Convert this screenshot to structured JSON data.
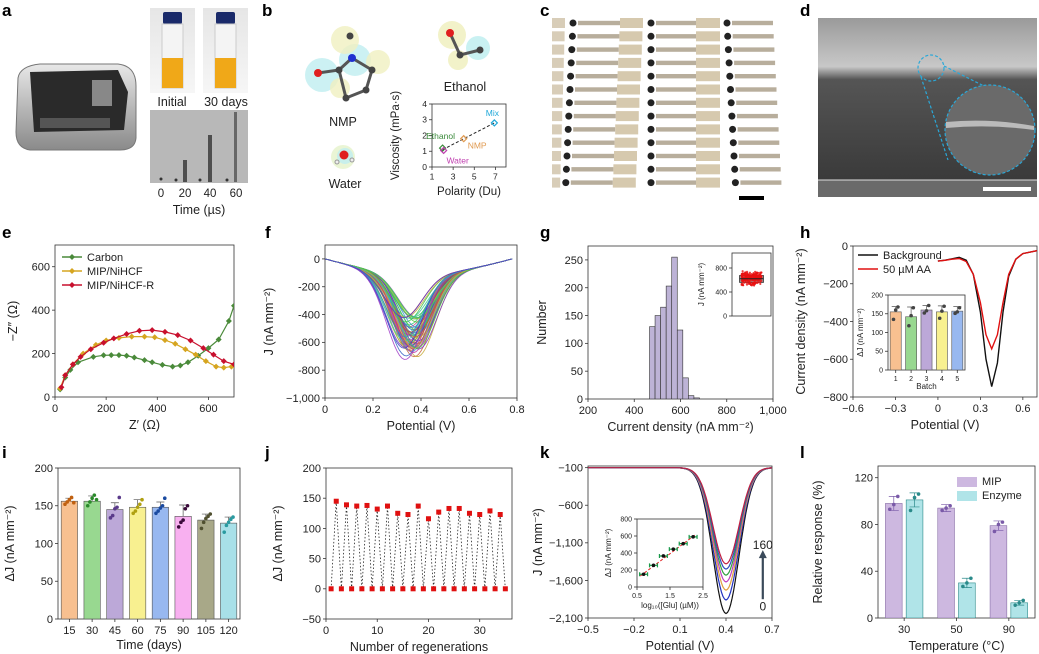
{
  "panel_labels": [
    "a",
    "b",
    "c",
    "d",
    "e",
    "f",
    "g",
    "h",
    "i",
    "j",
    "k",
    "l"
  ],
  "panel_a": {
    "vial_labels": [
      "Initial",
      "30 days"
    ],
    "time_ticks": [
      "0",
      "20",
      "40",
      "60"
    ],
    "time_axis_label": "Time (µs)"
  },
  "panel_b": {
    "molecules": [
      "NMP",
      "Ethanol",
      "Water"
    ]
  },
  "chart_data": [
    {
      "id": "b-inset",
      "type": "scatter",
      "xlabel": "Polarity (Du)",
      "ylabel": "Viscosity (mPa·s)",
      "xlim": [
        1,
        8
      ],
      "ylim": [
        0,
        4
      ],
      "xticks": [
        1,
        3,
        5,
        7
      ],
      "xtick_labels": [
        "1",
        "3",
        "5",
        "7"
      ],
      "yticks": [
        0,
        1,
        2,
        3,
        4
      ],
      "ytick_labels": [
        "0",
        "1",
        "2",
        "3",
        "4"
      ],
      "points": [
        {
          "label": "Ethanol",
          "x": 2.0,
          "y": 1.2,
          "color": "#3a8a3a"
        },
        {
          "label": "Water",
          "x": 2.1,
          "y": 1.05,
          "color": "#c040b0"
        },
        {
          "label": "NMP",
          "x": 4.0,
          "y": 1.8,
          "color": "#e09a50"
        },
        {
          "label": "Mix",
          "x": 6.9,
          "y": 2.8,
          "color": "#20a8d8"
        }
      ],
      "fit_line": [
        [
          2.0,
          1.1
        ],
        [
          6.9,
          2.8
        ]
      ]
    },
    {
      "id": "e",
      "type": "line",
      "xlabel": "Z′ (Ω)",
      "ylabel": "−Z″ (Ω)",
      "xlim": [
        0,
        700
      ],
      "ylim": [
        0,
        700
      ],
      "xticks": [
        0,
        200,
        400,
        600
      ],
      "xtick_labels": [
        "0",
        "200",
        "400",
        "600"
      ],
      "yticks": [
        0,
        200,
        400,
        600
      ],
      "ytick_labels": [
        "0",
        "200",
        "400",
        "600"
      ],
      "legend_position": "top-left",
      "series": [
        {
          "name": "Carbon",
          "color": "#4a8a3a",
          "points": [
            [
              20,
              35
            ],
            [
              40,
              90
            ],
            [
              60,
              125
            ],
            [
              90,
              160
            ],
            [
              150,
              185
            ],
            [
              190,
              192
            ],
            [
              220,
              193
            ],
            [
              250,
              193
            ],
            [
              280,
              190
            ],
            [
              310,
              182
            ],
            [
              350,
              170
            ],
            [
              380,
              160
            ],
            [
              420,
              148
            ],
            [
              460,
              140
            ],
            [
              490,
              145
            ],
            [
              520,
              160
            ],
            [
              560,
              190
            ],
            [
              600,
              225
            ],
            [
              640,
              265
            ],
            [
              680,
              350
            ],
            [
              700,
              420
            ]
          ]
        },
        {
          "name": "MIP/NiHCF",
          "color": "#d6a520",
          "points": [
            [
              20,
              40
            ],
            [
              40,
              100
            ],
            [
              70,
              150
            ],
            [
              110,
              200
            ],
            [
              160,
              240
            ],
            [
              200,
              260
            ],
            [
              250,
              272
            ],
            [
              300,
              278
            ],
            [
              350,
              278
            ],
            [
              390,
              275
            ],
            [
              430,
              262
            ],
            [
              470,
              245
            ],
            [
              510,
              220
            ],
            [
              550,
              195
            ],
            [
              590,
              165
            ],
            [
              630,
              140
            ],
            [
              660,
              135
            ],
            [
              690,
              140
            ],
            [
              700,
              145
            ]
          ]
        },
        {
          "name": "MIP/NiHCF-R",
          "color": "#c8102e",
          "points": [
            [
              25,
              45
            ],
            [
              40,
              100
            ],
            [
              70,
              150
            ],
            [
              100,
              185
            ],
            [
              140,
              220
            ],
            [
              190,
              250
            ],
            [
              230,
              270
            ],
            [
              280,
              290
            ],
            [
              330,
              305
            ],
            [
              380,
              308
            ],
            [
              430,
              300
            ],
            [
              480,
              285
            ],
            [
              530,
              260
            ],
            [
              580,
              225
            ],
            [
              620,
              195
            ],
            [
              660,
              165
            ],
            [
              700,
              150
            ]
          ]
        }
      ]
    },
    {
      "id": "f",
      "type": "line",
      "xlabel": "Potential (V)",
      "ylabel": "J (nA mm⁻²)",
      "xlim": [
        0,
        0.8
      ],
      "ylim": [
        -1000,
        100
      ],
      "xticks": [
        0,
        0.2,
        0.4,
        0.6,
        0.8
      ],
      "xtick_labels": [
        "0",
        "0.2",
        "0.4",
        "0.6",
        "0.8"
      ],
      "yticks": [
        -1000,
        -800,
        -600,
        -400,
        -200,
        0
      ],
      "ytick_labels": [
        "−1,000",
        "-800",
        "-600",
        "-400",
        "-200",
        "0"
      ],
      "curve_count": 60,
      "peak_minimum_range": [
        -820,
        -490
      ],
      "peak_potential_range": [
        0.33,
        0.39
      ]
    },
    {
      "id": "g",
      "type": "bar",
      "xlabel": "Current density (nA mm⁻²)",
      "ylabel": "Number",
      "xlim": [
        200,
        1000
      ],
      "ylim": [
        0,
        275
      ],
      "xticks": [
        200,
        400,
        600,
        800,
        1000
      ],
      "xtick_labels": [
        "200",
        "400",
        "600",
        "800",
        "1,000"
      ],
      "yticks": [
        0,
        50,
        100,
        150,
        200,
        250
      ],
      "ytick_labels": [
        "0",
        "50",
        "100",
        "150",
        "200",
        "250"
      ],
      "bin_start": 466,
      "bin_width": 24,
      "values": [
        130,
        150,
        165,
        203,
        255,
        124,
        38,
        6,
        2
      ],
      "color": "#bdb3d6"
    },
    {
      "id": "g-inset",
      "type": "scatter",
      "ylabel": "J (nA mm⁻²)",
      "xlim": [
        0,
        1
      ],
      "ylim": [
        0,
        1050
      ],
      "yticks": [
        0,
        400,
        800
      ],
      "ytick_labels": [
        "0",
        "400",
        "800"
      ],
      "box": {
        "q1": 560,
        "median": 620,
        "q3": 675
      },
      "points_range": [
        490,
        760
      ],
      "point_count": 220,
      "color": "#e81010"
    },
    {
      "id": "h",
      "type": "line",
      "xlabel": "Potential (V)",
      "ylabel": "Current density (nA mm⁻²)",
      "xlim": [
        -0.6,
        0.7
      ],
      "ylim": [
        -800,
        0
      ],
      "xticks": [
        -0.6,
        -0.3,
        0,
        0.3,
        0.6
      ],
      "xtick_labels": [
        "−0.6",
        "−0.3",
        "0",
        "0.3",
        "0.6"
      ],
      "yticks": [
        -800,
        -600,
        -400,
        -200,
        0
      ],
      "ytick_labels": [
        "−800",
        "−600",
        "−400",
        "−200",
        "0"
      ],
      "legend_position": "top-left",
      "series": [
        {
          "name": "Background",
          "color": "#111111",
          "points": [
            [
              0,
              -80
            ],
            [
              0.05,
              -75
            ],
            [
              0.1,
              -68
            ],
            [
              0.15,
              -60
            ],
            [
              0.2,
              -75
            ],
            [
              0.25,
              -150
            ],
            [
              0.3,
              -350
            ],
            [
              0.34,
              -600
            ],
            [
              0.38,
              -745
            ],
            [
              0.42,
              -620
            ],
            [
              0.46,
              -350
            ],
            [
              0.5,
              -160
            ],
            [
              0.55,
              -70
            ],
            [
              0.6,
              -40
            ],
            [
              0.7,
              -25
            ]
          ]
        },
        {
          "name": "50 µM AA",
          "color": "#e01010",
          "points": [
            [
              0,
              -80
            ],
            [
              0.05,
              -76
            ],
            [
              0.1,
              -70
            ],
            [
              0.15,
              -66
            ],
            [
              0.2,
              -82
            ],
            [
              0.25,
              -150
            ],
            [
              0.3,
              -300
            ],
            [
              0.34,
              -470
            ],
            [
              0.38,
              -545
            ],
            [
              0.42,
              -470
            ],
            [
              0.46,
              -300
            ],
            [
              0.5,
              -150
            ],
            [
              0.55,
              -70
            ],
            [
              0.6,
              -40
            ],
            [
              0.7,
              -25
            ]
          ]
        }
      ]
    },
    {
      "id": "h-inset",
      "type": "bar",
      "xlabel": "Batch",
      "ylabel": "ΔJ (nA mm⁻²)",
      "ylim": [
        0,
        200
      ],
      "yticks": [
        0,
        50,
        100,
        150,
        200
      ],
      "ytick_labels": [
        "0",
        "50",
        "100",
        "150",
        "200"
      ],
      "categories": [
        "1",
        "2",
        "3",
        "4",
        "5"
      ],
      "values": [
        155,
        142,
        160,
        155,
        157
      ],
      "errors": [
        14,
        26,
        12,
        16,
        12
      ],
      "points": [
        [
          135,
          160,
          168
        ],
        [
          118,
          145,
          166
        ],
        [
          152,
          158,
          172
        ],
        [
          138,
          157,
          170
        ],
        [
          151,
          155,
          166
        ]
      ],
      "colors": [
        "#f8c090",
        "#98d890",
        "#bca8d8",
        "#f8f090",
        "#98b8f0"
      ]
    },
    {
      "id": "i",
      "type": "bar",
      "xlabel": "Time (days)",
      "ylabel": "ΔJ (nA mm⁻²)",
      "ylim": [
        0,
        200
      ],
      "yticks": [
        0,
        50,
        100,
        150,
        200
      ],
      "ytick_labels": [
        "0",
        "50",
        "100",
        "150",
        "200"
      ],
      "categories": [
        "15",
        "30",
        "45",
        "60",
        "75",
        "90",
        "105",
        "120"
      ],
      "values": [
        156,
        156,
        145,
        148,
        148,
        136,
        131,
        127
      ],
      "errors": [
        4,
        7,
        9,
        10,
        7,
        15,
        8,
        8
      ],
      "points": [
        [
          152,
          155,
          158,
          161,
          154
        ],
        [
          150,
          155,
          160,
          164,
          158
        ],
        [
          134,
          137,
          146,
          148,
          161
        ],
        [
          140,
          143,
          148,
          152,
          158
        ],
        [
          140,
          143,
          147,
          150,
          160
        ],
        [
          122,
          128,
          131,
          146,
          150
        ],
        [
          120,
          128,
          133,
          136,
          139
        ],
        [
          115,
          124,
          128,
          132,
          135
        ]
      ],
      "colors": [
        "#f8c090",
        "#98d890",
        "#bca8d8",
        "#f8f090",
        "#98b8f0",
        "#f8b0f0",
        "#a8a888",
        "#a8e0e8"
      ],
      "point_colors": [
        "#c06010",
        "#2a8a2a",
        "#5a3a8a",
        "#b0a010",
        "#1a4aa0",
        "#3a0a3a",
        "#505030",
        "#2a9aa0"
      ]
    },
    {
      "id": "j",
      "type": "scatter",
      "xlabel": "Number of regenerations",
      "ylabel": "ΔJ (nA mm⁻²)",
      "xlim": [
        0,
        36.3
      ],
      "ylim": [
        -50,
        200
      ],
      "xticks": [
        0,
        10,
        20,
        30
      ],
      "xtick_labels": [
        "0",
        "10",
        "20",
        "30"
      ],
      "yticks": [
        -50,
        0,
        50,
        100,
        150,
        200
      ],
      "ytick_labels": [
        "−50",
        "0",
        "50",
        "100",
        "150",
        "200"
      ],
      "x": [
        1,
        2,
        3,
        4,
        5,
        6,
        7,
        8,
        9,
        10,
        11,
        12,
        13,
        14,
        15,
        16,
        17,
        18,
        19,
        20,
        21,
        22,
        23,
        24,
        25,
        26,
        27,
        28,
        29,
        30,
        31,
        32,
        33,
        34,
        35
      ],
      "y": [
        0,
        145,
        0,
        139,
        0,
        137,
        0,
        138,
        0,
        132,
        0,
        137,
        0,
        125,
        0,
        123,
        0,
        137,
        0,
        116,
        0,
        127,
        0,
        133,
        0,
        133,
        0,
        125,
        0,
        123,
        0,
        129,
        0,
        123,
        0
      ],
      "color": "#e01010"
    },
    {
      "id": "k",
      "type": "line",
      "xlabel": "Potential (V)",
      "ylabel": "J (nA mm⁻²)",
      "xlim": [
        -0.5,
        0.7
      ],
      "ylim": [
        -2100,
        -78
      ],
      "xticks": [
        -0.5,
        -0.2,
        0.1,
        0.4,
        0.7
      ],
      "xtick_labels": [
        "−0.5",
        "−0.2",
        "0.1",
        "0.4",
        "0.7"
      ],
      "yticks": [
        -2100,
        -1600,
        -1100,
        -600,
        -100
      ],
      "ytick_labels": [
        "−2,100",
        "−1,600",
        "−1,100",
        "−600",
        "−100"
      ],
      "peak_potential": 0.4,
      "peak_minima": [
        -2040,
        -1860,
        -1730,
        -1620,
        -1530,
        -1450,
        -1380
      ],
      "curve_colors": [
        "#111111",
        "#2030c0",
        "#e0a040",
        "#c040c0",
        "#30a040",
        "#3050c0",
        "#c02040"
      ],
      "annotations": {
        "top": "160",
        "bottom": "0"
      }
    },
    {
      "id": "k-inset",
      "type": "scatter",
      "xlabel": "log₁₀([Glu] (µM))",
      "ylabel": "ΔJ (nA mm⁻²)",
      "xlim": [
        0.5,
        2.5
      ],
      "ylim": [
        0,
        800
      ],
      "xticks": [
        0.5,
        1.5,
        2.5
      ],
      "xtick_labels": [
        "0.5",
        "1.5",
        "2.5"
      ],
      "yticks": [
        0,
        200,
        400,
        600,
        800
      ],
      "ytick_labels": [
        "0",
        "200",
        "400",
        "600",
        "800"
      ],
      "x": [
        0.7,
        1.0,
        1.3,
        1.6,
        1.9,
        2.2
      ],
      "y": [
        150,
        255,
        365,
        445,
        510,
        590
      ],
      "xerr": 0.12,
      "fit_line": [
        [
          0.6,
          130
        ],
        [
          2.25,
          610
        ]
      ]
    },
    {
      "id": "l",
      "type": "bar",
      "xlabel": "Temperature (°C)",
      "ylabel": "Relative response (%)",
      "ylim": [
        0,
        130
      ],
      "yticks": [
        0,
        40,
        80,
        120
      ],
      "ytick_labels": [
        "0",
        "40",
        "80",
        "120"
      ],
      "categories": [
        "30",
        "50",
        "90"
      ],
      "legend_position": "top-right",
      "series": [
        {
          "name": "MIP",
          "color": "#cdb8e0",
          "point_color": "#7a5aa8",
          "values": [
            98,
            94,
            79
          ],
          "errors": [
            6,
            3,
            4
          ],
          "points": [
            [
              93,
              97,
              104
            ],
            [
              92,
              94,
              96
            ],
            [
              74,
              80,
              82
            ]
          ]
        },
        {
          "name": "Enzyme",
          "color": "#b0e4e8",
          "point_color": "#2a8a8a",
          "values": [
            101,
            30,
            13
          ],
          "errors": [
            6,
            4,
            2
          ],
          "points": [
            [
              92,
              103,
              106
            ],
            [
              27,
              30,
              34
            ],
            [
              11,
              13,
              15
            ]
          ]
        }
      ]
    }
  ]
}
